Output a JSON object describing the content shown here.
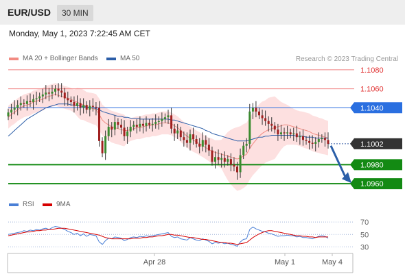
{
  "header": {
    "pair": "EUR/USD",
    "interval": "30 MIN"
  },
  "datetime": "Monday, May 1, 2023 7:22:45 AM CET",
  "legend": {
    "items": [
      {
        "label": "MA 20 + Bollinger Bands",
        "color": "#f28b82"
      },
      {
        "label": "MA 50",
        "color": "#2c5ea8"
      }
    ],
    "credit": "Research © 2023 Trading Central"
  },
  "rsi_legend": {
    "items": [
      {
        "label": "RSI",
        "color": "#4a7fd6"
      },
      {
        "label": "9MA",
        "color": "#d60000"
      }
    ]
  },
  "chart_data": [
    {
      "type": "candlestick",
      "title": "",
      "ylim": [
        1.0955,
        1.1085
      ],
      "x_tick_labels": [
        "Apr 28",
        "May 1",
        "May 4"
      ],
      "levels": [
        {
          "value": 1.108,
          "label": "1.1080",
          "style": "line",
          "color": "#f08080"
        },
        {
          "value": 1.106,
          "label": "1.1060",
          "style": "line",
          "color": "#f08080"
        },
        {
          "value": 1.104,
          "label": "1.1040",
          "style": "tag",
          "color": "#2a6fe0"
        },
        {
          "value": 1.1002,
          "label": "1.1002",
          "style": "tag",
          "color": "#333333"
        },
        {
          "value": 1.098,
          "label": "1.0980",
          "style": "tag",
          "color": "#138a13"
        },
        {
          "value": 1.096,
          "label": "1.0960",
          "style": "tag",
          "color": "#138a13"
        }
      ],
      "close_series": [
        1.1035,
        1.1038,
        1.104,
        1.1043,
        1.1045,
        1.1044,
        1.1047,
        1.1046,
        1.1049,
        1.105,
        1.1052,
        1.1054,
        1.1056,
        1.1055,
        1.1057,
        1.106,
        1.1058,
        1.1056,
        1.105,
        1.1048,
        1.1046,
        1.1042,
        1.1045,
        1.104,
        1.1043,
        1.1038,
        1.1042,
        1.1041,
        1.104,
        1.1005,
        1.0992,
        1.101,
        1.102,
        1.1017,
        1.1025,
        1.1022,
        1.1019,
        1.101,
        1.1015,
        1.102,
        1.1022,
        1.102,
        1.1023,
        1.1021,
        1.1024,
        1.1022,
        1.1023,
        1.1025,
        1.1026,
        1.1028,
        1.103,
        1.1032,
        1.1018,
        1.1013,
        1.1016,
        1.1009,
        1.1006,
        1.1003,
        1.1012,
        1.1007,
        1.1002,
        1.0999,
        1.1006,
        1.1001,
        1.0995,
        1.0983,
        1.0988,
        1.0985,
        1.0987,
        1.0983,
        1.0986,
        1.098,
        1.0978,
        1.0972,
        1.099,
        1.1,
        1.1002,
        1.1036,
        1.104,
        1.1036,
        1.1032,
        1.1029,
        1.1026,
        1.1023,
        1.1021,
        1.1017,
        1.1012,
        1.1014,
        1.1013,
        1.1014,
        1.1012,
        1.1013,
        1.1009,
        1.101,
        1.1006,
        1.1005,
        1.1003,
        1.1002,
        1.1004,
        1.1007,
        1.1008,
        1.1006,
        1.1002
      ],
      "ma20": [
        1.103,
        1.1033,
        1.1035,
        1.1038,
        1.104,
        1.1042,
        1.1043,
        1.1044,
        1.1046,
        1.1047,
        1.1048,
        1.1049,
        1.1051,
        1.1052,
        1.1053,
        1.1054,
        1.1053,
        1.1052,
        1.1051,
        1.105,
        1.1049,
        1.1047,
        1.1046,
        1.1044,
        1.1043,
        1.1041,
        1.104,
        1.1039,
        1.1038,
        1.1033,
        1.1027,
        1.1024,
        1.1022,
        1.102,
        1.1019,
        1.1018,
        1.1017,
        1.1016,
        1.1016,
        1.1017,
        1.1018,
        1.1019,
        1.1019,
        1.102,
        1.1021,
        1.1021,
        1.1022,
        1.1022,
        1.1023,
        1.1024,
        1.1024,
        1.1024,
        1.1023,
        1.1021,
        1.1019,
        1.1016,
        1.1013,
        1.101,
        1.1008,
        1.1006,
        1.1004,
        1.1002,
        1.1,
        1.0998,
        1.0996,
        1.0994,
        1.0993,
        1.0992,
        1.0991,
        1.099,
        1.0989,
        1.0988,
        1.0987,
        1.0986,
        1.0987,
        1.0989,
        1.0991,
        1.0997,
        1.1002,
        1.1006,
        1.101,
        1.1013,
        1.1015,
        1.1017,
        1.1018,
        1.1019,
        1.102,
        1.1021,
        1.1022,
        1.1022,
        1.1021,
        1.102,
        1.1019,
        1.1018,
        1.1017,
        1.1016,
        1.1015,
        1.1013,
        1.1012,
        1.1011,
        1.101,
        1.1009,
        1.1008
      ],
      "ma50": [
        1.101,
        1.1013,
        1.1016,
        1.1019,
        1.1022,
        1.1025,
        1.1028,
        1.103,
        1.1032,
        1.1034,
        1.1036,
        1.1038,
        1.104,
        1.1041,
        1.1042,
        1.1043,
        1.1044,
        1.1044,
        1.1044,
        1.1044,
        1.1043,
        1.1043,
        1.1042,
        1.1042,
        1.1041,
        1.1041,
        1.104,
        1.104,
        1.1039,
        1.1038,
        1.1036,
        1.1035,
        1.1034,
        1.1033,
        1.1032,
        1.1031,
        1.1031,
        1.103,
        1.103,
        1.1029,
        1.1029,
        1.1029,
        1.1028,
        1.1028,
        1.1028,
        1.1028,
        1.1028,
        1.1028,
        1.1028,
        1.1028,
        1.1028,
        1.1028,
        1.1027,
        1.1027,
        1.1026,
        1.1025,
        1.1024,
        1.1023,
        1.1022,
        1.1021,
        1.102,
        1.1019,
        1.1018,
        1.1016,
        1.1015,
        1.1013,
        1.1012,
        1.1011,
        1.101,
        1.1009,
        1.1008,
        1.1007,
        1.1006,
        1.1005,
        1.1005,
        1.1005,
        1.1005,
        1.1006,
        1.1007,
        1.1008,
        1.1009,
        1.1009,
        1.101,
        1.101,
        1.1011,
        1.1011,
        1.1011,
        1.1011,
        1.1011,
        1.1011,
        1.1011,
        1.1011,
        1.101,
        1.101,
        1.101,
        1.1009,
        1.1009,
        1.1009,
        1.1008,
        1.1008,
        1.1008,
        1.1008,
        1.1008
      ]
    },
    {
      "type": "line",
      "title": "",
      "ylim": [
        25,
        80
      ],
      "y_tick_labels": [
        "70",
        "50",
        "30"
      ],
      "reference_lines": [
        70,
        50,
        30
      ],
      "series": [
        {
          "name": "RSI",
          "values": [
            50,
            51,
            52,
            53,
            54,
            56,
            55,
            57,
            56,
            58,
            57,
            59,
            60,
            58,
            61,
            63,
            62,
            60,
            58,
            55,
            53,
            50,
            52,
            48,
            51,
            47,
            50,
            49,
            48,
            38,
            34,
            40,
            44,
            43,
            46,
            45,
            44,
            40,
            42,
            45,
            46,
            45,
            47,
            46,
            48,
            47,
            48,
            49,
            50,
            51,
            52,
            53,
            47,
            45,
            46,
            43,
            42,
            41,
            45,
            43,
            41,
            40,
            43,
            41,
            39,
            35,
            37,
            36,
            37,
            35,
            36,
            34,
            33,
            31,
            38,
            42,
            43,
            58,
            62,
            59,
            57,
            55,
            54,
            52,
            51,
            49,
            47,
            48,
            48,
            49,
            48,
            48,
            46,
            47,
            45,
            45,
            44,
            43,
            45,
            47,
            48,
            47,
            44
          ]
        },
        {
          "name": "9MA",
          "values": [
            48,
            49,
            50,
            51,
            52,
            53,
            54,
            54,
            55,
            56,
            56,
            57,
            57,
            58,
            58,
            59,
            60,
            60,
            60,
            59,
            58,
            57,
            56,
            55,
            54,
            53,
            52,
            51,
            50,
            49,
            47,
            45,
            44,
            43,
            43,
            43,
            43,
            43,
            43,
            43,
            44,
            44,
            44,
            45,
            45,
            46,
            46,
            47,
            48,
            48,
            49,
            50,
            50,
            49,
            49,
            48,
            47,
            46,
            45,
            45,
            44,
            43,
            42,
            42,
            41,
            40,
            39,
            38,
            37,
            37,
            36,
            36,
            35,
            34,
            35,
            36,
            37,
            41,
            45,
            48,
            51,
            53,
            55,
            56,
            56,
            55,
            54,
            53,
            52,
            51,
            50,
            49,
            48,
            48,
            47,
            47,
            46,
            46,
            45,
            46,
            46,
            46,
            46
          ]
        }
      ]
    }
  ]
}
